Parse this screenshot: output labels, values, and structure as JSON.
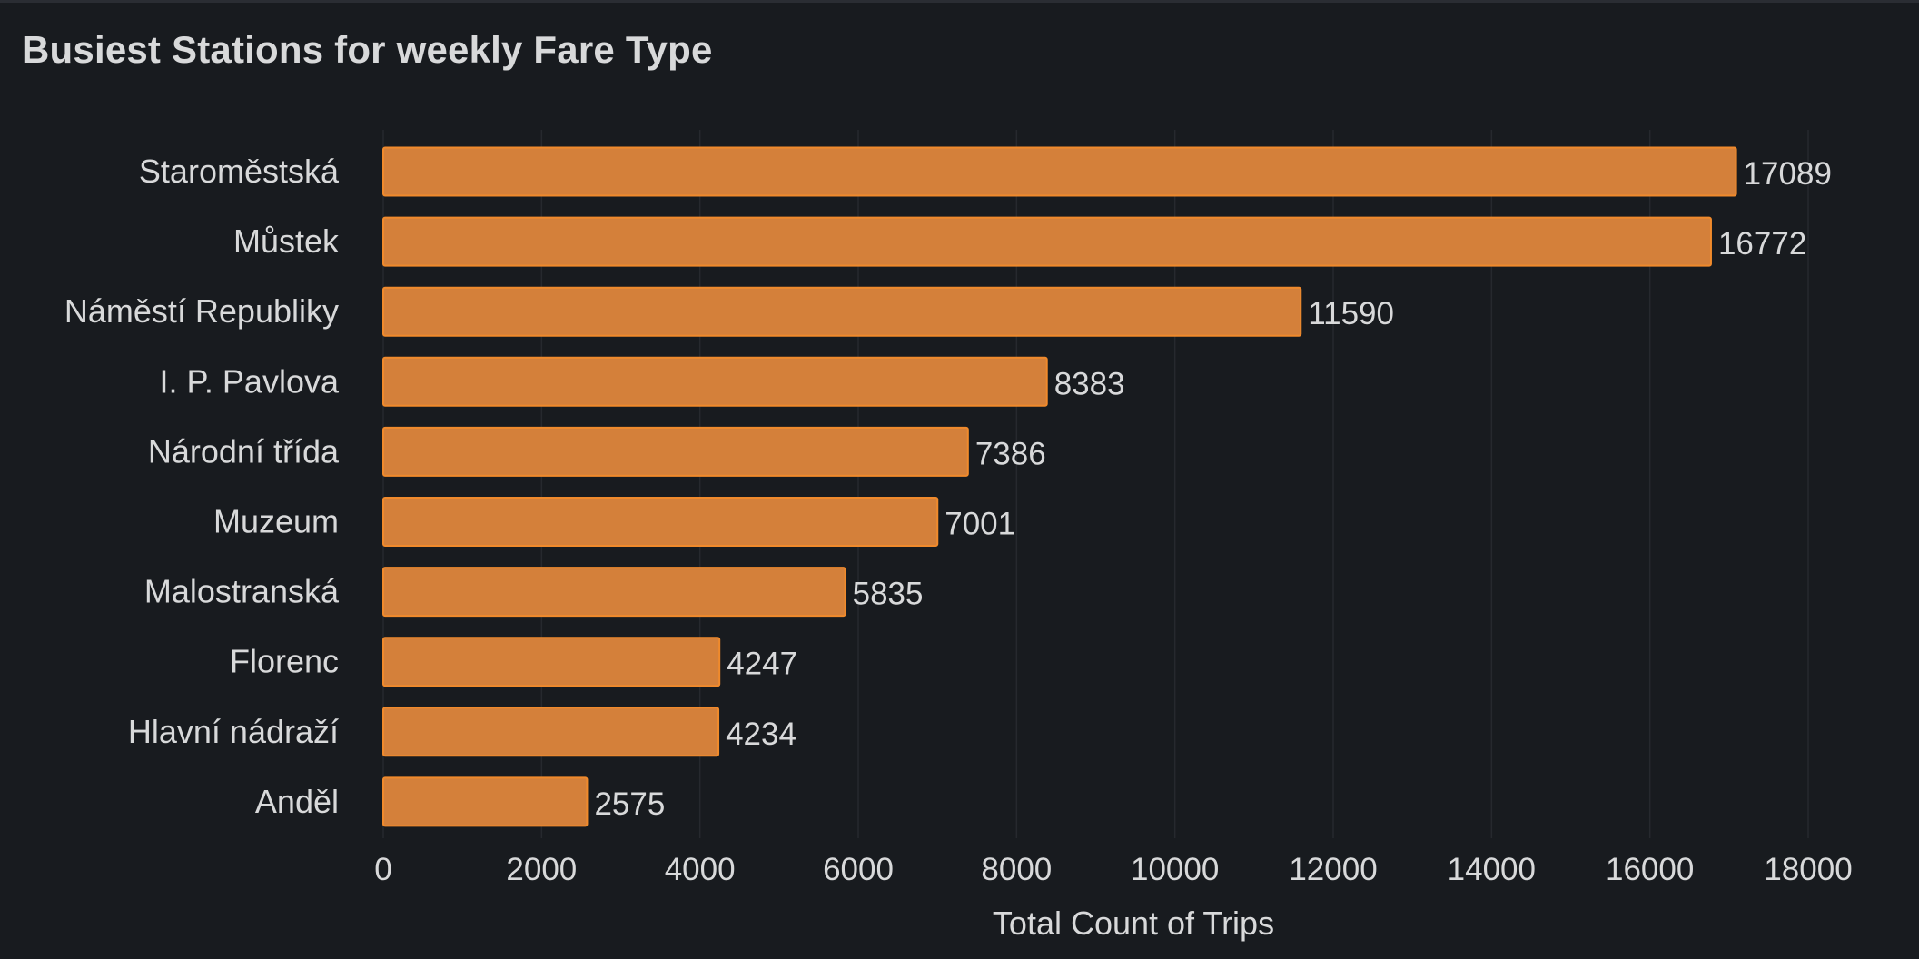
{
  "panel": {
    "title": "Busiest Stations for weekly Fare Type"
  },
  "colors": {
    "background": "#181b1f",
    "bar_fill": "#d4803a",
    "bar_stroke": "#f08a2c",
    "text": "#d8d9da",
    "grid": "#26292e"
  },
  "chart_data": {
    "type": "bar",
    "orientation": "horizontal",
    "title": "Busiest Stations for weekly Fare Type",
    "xlabel": "Total Count of Trips",
    "ylabel": "",
    "categories": [
      "Staroměstská",
      "Můstek",
      "Náměstí Republiky",
      "I. P. Pavlova",
      "Národní třída",
      "Muzeum",
      "Malostranská",
      "Florenc",
      "Hlavní nádraží",
      "Anděl"
    ],
    "values": [
      17089,
      16772,
      11590,
      8383,
      7386,
      7001,
      5835,
      4247,
      4234,
      2575
    ],
    "value_labels": [
      "17089",
      "16772",
      "11590",
      "8383",
      "7386",
      "7001",
      "5835",
      "4247",
      "4234",
      "2575"
    ],
    "xlim": [
      0,
      18000
    ],
    "xticks": [
      0,
      2000,
      4000,
      6000,
      8000,
      10000,
      12000,
      14000,
      16000,
      18000
    ],
    "xtick_labels": [
      "0",
      "2000",
      "4000",
      "6000",
      "8000",
      "10000",
      "12000",
      "14000",
      "16000",
      "18000"
    ],
    "grid": "vertical",
    "legend": "none"
  }
}
